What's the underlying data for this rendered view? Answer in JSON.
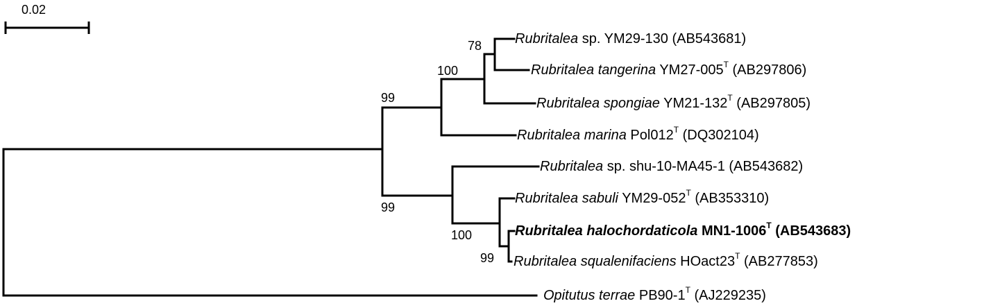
{
  "scale": {
    "label": "0.02"
  },
  "taxa": [
    {
      "genus": "Rubritalea",
      "species": "sp. YM29-130",
      "type_strain": false,
      "accession": "(AB543681)",
      "bold": false
    },
    {
      "genus": "Rubritalea tangerina",
      "species": "YM27-005",
      "type_strain": true,
      "accession": "(AB297806)",
      "bold": false
    },
    {
      "genus": "Rubritalea spongiae",
      "species": "YM21-132",
      "type_strain": true,
      "accession": "(AB297805)",
      "bold": false
    },
    {
      "genus": "Rubritalea marina",
      "species": "Pol012",
      "type_strain": true,
      "accession": "(DQ302104)",
      "bold": false
    },
    {
      "genus": "Rubritalea",
      "species": "sp. shu-10-MA45-1",
      "type_strain": false,
      "accession": "(AB543682)",
      "bold": false
    },
    {
      "genus": "Rubritalea sabuli",
      "species": "YM29-052",
      "type_strain": true,
      "accession": "(AB353310)",
      "bold": false
    },
    {
      "genus": "Rubritalea halochordaticola",
      "species": "MN1-1006",
      "type_strain": true,
      "accession": "(AB543683)",
      "bold": true
    },
    {
      "genus": "Rubritalea squalenifaciens",
      "species": "HOact23",
      "type_strain": true,
      "accession": "(AB277853)",
      "bold": false
    },
    {
      "genus": "Opitutus terrae",
      "species": "PB90-1",
      "type_strain": true,
      "accession": "(AJ229235)",
      "bold": false
    }
  ],
  "type_strain_mark": "T",
  "bootstrap": [
    "78",
    "100",
    "99",
    "99",
    "100",
    "99"
  ]
}
